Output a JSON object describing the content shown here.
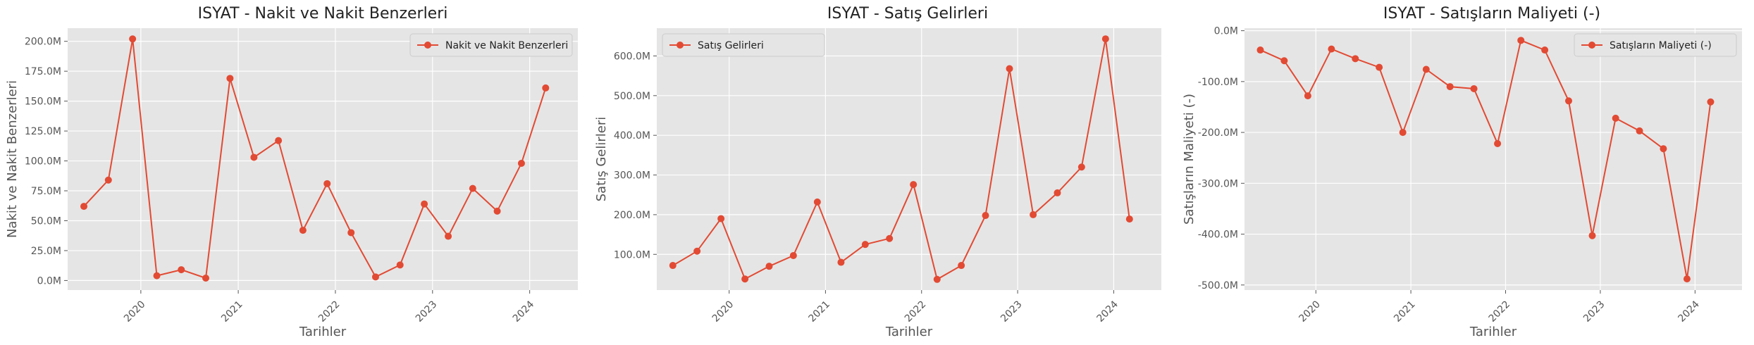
{
  "style": {
    "panel_bg": "#e5e5e5",
    "grid_color": "#ffffff",
    "line_color": "#e24a33",
    "text_color": "#555555"
  },
  "chart_data": [
    {
      "type": "line",
      "title": "ISYAT -   Nakit ve Nakit Benzerleri",
      "xlabel": "Tarihler",
      "ylabel": "Nakit ve Nakit Benzerleri",
      "legend": "top-right",
      "grid": true,
      "xlim": [
        "2019-04-01",
        "2024-06-30"
      ],
      "ylim": [
        -8000000,
        211000000
      ],
      "x_ticks": [
        {
          "value": "2020-01-01",
          "label": "2020"
        },
        {
          "value": "2021-01-01",
          "label": "2021"
        },
        {
          "value": "2022-01-01",
          "label": "2022"
        },
        {
          "value": "2023-01-01",
          "label": "2023"
        },
        {
          "value": "2024-01-01",
          "label": "2024"
        }
      ],
      "y_ticks": [
        {
          "value": 0,
          "label": "0.0M"
        },
        {
          "value": 25000000,
          "label": "25.0M"
        },
        {
          "value": 50000000,
          "label": "50.0M"
        },
        {
          "value": 75000000,
          "label": "75.0M"
        },
        {
          "value": 100000000,
          "label": "100.0M"
        },
        {
          "value": 125000000,
          "label": "125.0M"
        },
        {
          "value": 150000000,
          "label": "150.0M"
        },
        {
          "value": 175000000,
          "label": "175.0M"
        },
        {
          "value": 200000000,
          "label": "200.0M"
        }
      ],
      "series": [
        {
          "name": "Nakit ve Nakit Benzerleri",
          "x": [
            "2019-06-01",
            "2019-09-01",
            "2019-12-01",
            "2020-03-01",
            "2020-06-01",
            "2020-09-01",
            "2020-12-01",
            "2021-03-01",
            "2021-06-01",
            "2021-09-01",
            "2021-12-01",
            "2022-03-01",
            "2022-06-01",
            "2022-09-01",
            "2022-12-01",
            "2023-03-01",
            "2023-06-01",
            "2023-09-01",
            "2023-12-01",
            "2024-03-01"
          ],
          "y": [
            62000000,
            84000000,
            202000000,
            4000000,
            9000000,
            2000000,
            169000000,
            103000000,
            117000000,
            42000000,
            81000000,
            40000000,
            3000000,
            13000000,
            64000000,
            37000000,
            77000000,
            58000000,
            98000000,
            161000000
          ]
        }
      ]
    },
    {
      "type": "line",
      "title": "ISYAT - Satış Gelirleri",
      "xlabel": "Tarihler",
      "ylabel": "Satış Gelirleri",
      "legend": "top-left",
      "grid": true,
      "xlim": [
        "2019-04-01",
        "2024-06-30"
      ],
      "ylim": [
        10000000,
        670000000
      ],
      "x_ticks": [
        {
          "value": "2020-01-01",
          "label": "2020"
        },
        {
          "value": "2021-01-01",
          "label": "2021"
        },
        {
          "value": "2022-01-01",
          "label": "2022"
        },
        {
          "value": "2023-01-01",
          "label": "2023"
        },
        {
          "value": "2024-01-01",
          "label": "2024"
        }
      ],
      "y_ticks": [
        {
          "value": 100000000,
          "label": "100.0M"
        },
        {
          "value": 200000000,
          "label": "200.0M"
        },
        {
          "value": 300000000,
          "label": "300.0M"
        },
        {
          "value": 400000000,
          "label": "400.0M"
        },
        {
          "value": 500000000,
          "label": "500.0M"
        },
        {
          "value": 600000000,
          "label": "600.0M"
        }
      ],
      "series": [
        {
          "name": "Satış Gelirleri",
          "x": [
            "2019-06-01",
            "2019-09-01",
            "2019-12-01",
            "2020-03-01",
            "2020-06-01",
            "2020-09-01",
            "2020-12-01",
            "2021-03-01",
            "2021-06-01",
            "2021-09-01",
            "2021-12-01",
            "2022-03-01",
            "2022-06-01",
            "2022-09-01",
            "2022-12-01",
            "2023-03-01",
            "2023-06-01",
            "2023-09-01",
            "2023-12-01",
            "2024-03-01"
          ],
          "y": [
            72000000,
            108000000,
            190000000,
            38000000,
            70000000,
            97000000,
            232000000,
            80000000,
            125000000,
            140000000,
            276000000,
            37000000,
            72000000,
            198000000,
            568000000,
            200000000,
            255000000,
            320000000,
            643000000,
            189000000
          ]
        }
      ]
    },
    {
      "type": "line",
      "title": "ISYAT - Satışların Maliyeti (-)",
      "xlabel": "Tarihler",
      "ylabel": "Satışların Maliyeti (-)",
      "legend": "top-right",
      "grid": true,
      "xlim": [
        "2019-04-01",
        "2024-06-30"
      ],
      "ylim": [
        -510000000,
        5000000
      ],
      "x_ticks": [
        {
          "value": "2020-01-01",
          "label": "2020"
        },
        {
          "value": "2021-01-01",
          "label": "2021"
        },
        {
          "value": "2022-01-01",
          "label": "2022"
        },
        {
          "value": "2023-01-01",
          "label": "2023"
        },
        {
          "value": "2024-01-01",
          "label": "2024"
        }
      ],
      "y_ticks": [
        {
          "value": 0,
          "label": "0.0M"
        },
        {
          "value": -100000000,
          "label": "-100.0M"
        },
        {
          "value": -200000000,
          "label": "-200.0M"
        },
        {
          "value": -300000000,
          "label": "-300.0M"
        },
        {
          "value": -400000000,
          "label": "-400.0M"
        },
        {
          "value": -500000000,
          "label": "-500.0M"
        }
      ],
      "series": [
        {
          "name": "Satışların Maliyeti (-)",
          "x": [
            "2019-06-01",
            "2019-09-01",
            "2019-12-01",
            "2020-03-01",
            "2020-06-01",
            "2020-09-01",
            "2020-12-01",
            "2021-03-01",
            "2021-06-01",
            "2021-09-01",
            "2021-12-01",
            "2022-03-01",
            "2022-06-01",
            "2022-09-01",
            "2022-12-01",
            "2023-03-01",
            "2023-06-01",
            "2023-09-01",
            "2023-12-01",
            "2024-03-01"
          ],
          "y": [
            -38000000,
            -59000000,
            -128000000,
            -36000000,
            -55000000,
            -72000000,
            -200000000,
            -76000000,
            -110000000,
            -114000000,
            -222000000,
            -19000000,
            -38000000,
            -138000000,
            -403000000,
            -172000000,
            -197000000,
            -232000000,
            -488000000,
            -140000000
          ]
        }
      ]
    }
  ]
}
